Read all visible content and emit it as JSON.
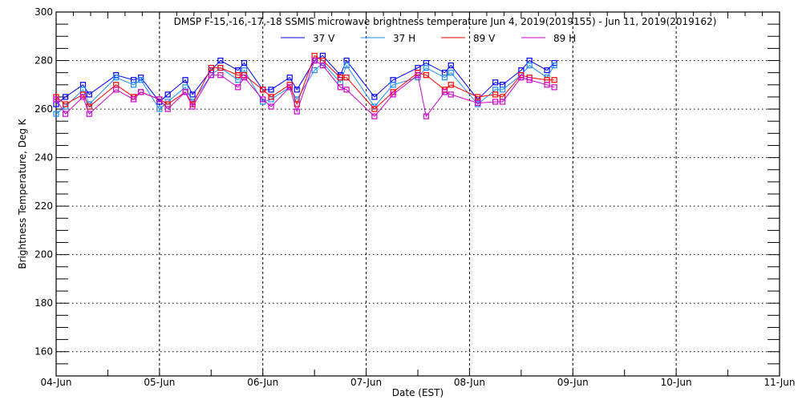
{
  "chart_data": {
    "type": "line",
    "title": "DMSP F-15,-16,-17,-18 SSMIS microwave brightness temperature Jun  4, 2019(2019155) - Jun 11, 2019(2019162)",
    "xlabel": "Date (EST)",
    "ylabel": "Brightness Temperature, Deg K",
    "xlim_days": [
      0,
      7
    ],
    "ylim": [
      150,
      300
    ],
    "x_tick_labels": [
      "04-Jun",
      "05-Jun",
      "06-Jun",
      "07-Jun",
      "08-Jun",
      "09-Jun",
      "10-Jun",
      "11-Jun"
    ],
    "y_ticks": [
      160,
      180,
      200,
      220,
      240,
      260,
      280,
      300
    ],
    "grid": true,
    "legend_position": "top-center",
    "x_days_since_jun4": [
      0.0,
      0.09,
      0.26,
      0.32,
      0.58,
      0.75,
      0.82,
      1.0,
      1.08,
      1.25,
      1.32,
      1.5,
      1.59,
      1.76,
      1.82,
      2.0,
      2.08,
      2.26,
      2.33,
      2.5,
      2.58,
      2.75,
      2.81,
      3.08,
      3.26,
      3.5,
      3.58,
      3.76,
      3.82,
      4.08,
      4.25,
      4.32,
      4.5,
      4.58,
      4.75,
      4.82
    ],
    "series": [
      {
        "name": "37 V",
        "color": "#0000ff",
        "values": [
          262,
          265,
          270,
          266,
          274,
          272,
          273,
          263,
          266,
          272,
          266,
          276,
          280,
          276,
          279,
          268,
          268,
          273,
          268,
          280,
          282,
          274,
          280,
          265,
          272,
          277,
          279,
          275,
          278,
          264,
          271,
          270,
          276,
          280,
          276,
          279
        ]
      },
      {
        "name": "37 H",
        "color": "#1e8cff",
        "values": [
          258,
          261,
          268,
          262,
          273,
          270,
          272,
          260,
          263,
          269,
          263,
          274,
          277,
          272,
          276,
          263,
          264,
          269,
          264,
          276,
          279,
          271,
          278,
          261,
          270,
          273,
          277,
          273,
          275,
          262,
          268,
          268,
          274,
          278,
          273,
          278
        ]
      },
      {
        "name": "89 V",
        "color": "#ff0000",
        "values": [
          265,
          262,
          266,
          261,
          270,
          265,
          267,
          264,
          262,
          267,
          262,
          277,
          277,
          274,
          274,
          268,
          265,
          270,
          262,
          282,
          280,
          273,
          273,
          260,
          267,
          275,
          274,
          268,
          270,
          265,
          266,
          265,
          274,
          273,
          272,
          272
        ]
      },
      {
        "name": "89 H",
        "color": "#cc00cc",
        "values": [
          264,
          258,
          265,
          258,
          268,
          264,
          267,
          264,
          260,
          267,
          261,
          274,
          274,
          269,
          273,
          264,
          261,
          269,
          259,
          280,
          278,
          269,
          268,
          257,
          266,
          274,
          257,
          267,
          266,
          262.5,
          263,
          263,
          273,
          272,
          270,
          269
        ]
      }
    ]
  }
}
